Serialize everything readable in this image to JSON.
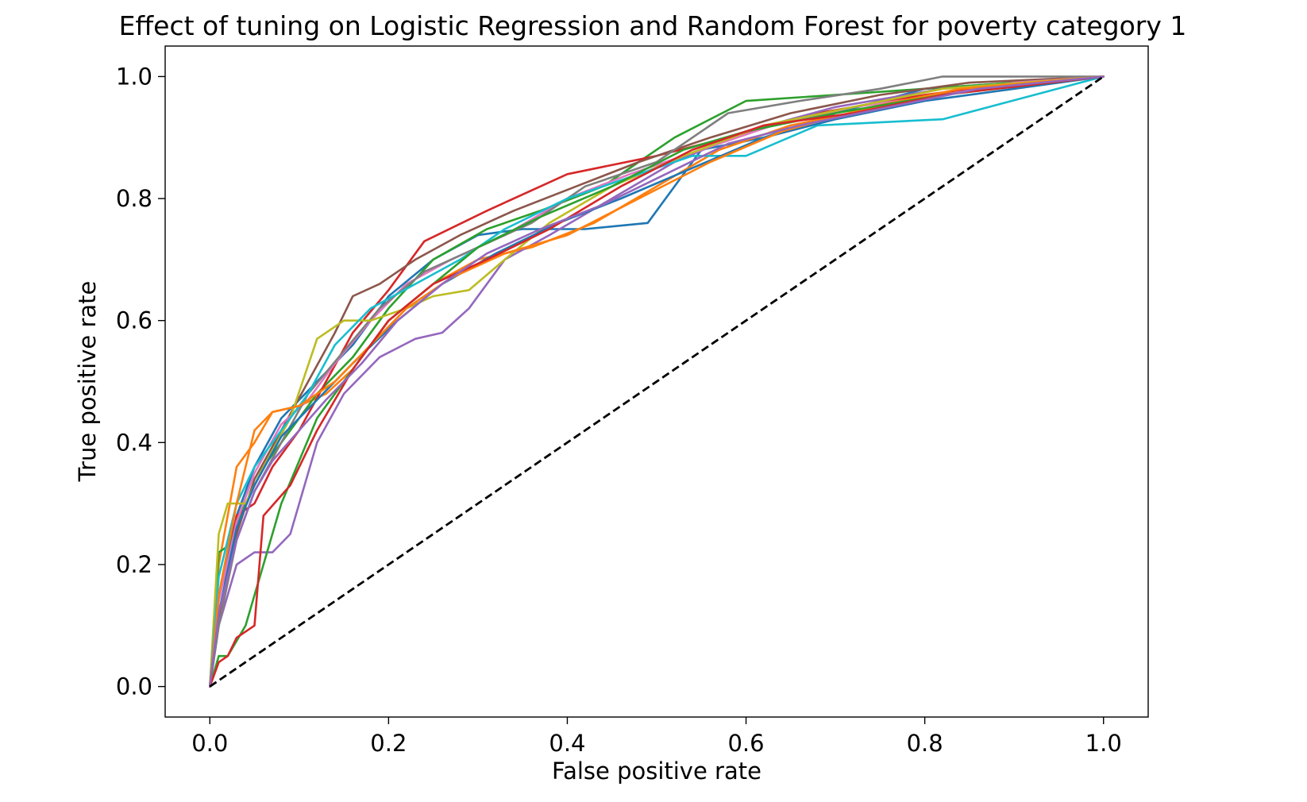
{
  "chart_data": {
    "type": "line",
    "title": "Effect of tuning on Logistic Regression and Random Forest for poverty category 1",
    "xlabel": "False positive rate",
    "ylabel": "True positive rate",
    "xlim": [
      -0.05,
      1.05
    ],
    "ylim": [
      -0.05,
      1.05
    ],
    "xticks": [
      "0.0",
      "0.2",
      "0.4",
      "0.6",
      "0.8",
      "1.0"
    ],
    "yticks": [
      "0.0",
      "0.2",
      "0.4",
      "0.6",
      "0.8",
      "1.0"
    ],
    "grid": false,
    "legend": "none",
    "chance_line": {
      "x": [
        0,
        1
      ],
      "y": [
        0,
        1
      ],
      "color": "#000000",
      "style": "dashed"
    },
    "series": [
      {
        "color": "#1f77b4",
        "x": [
          0,
          0.01,
          0.03,
          0.05,
          0.08,
          0.12,
          0.16,
          0.2,
          0.25,
          0.3,
          0.35,
          0.42,
          0.49,
          0.55,
          0.62,
          0.7,
          0.8,
          0.9,
          1.0
        ],
        "y": [
          0,
          0.15,
          0.28,
          0.36,
          0.44,
          0.5,
          0.56,
          0.64,
          0.7,
          0.74,
          0.75,
          0.75,
          0.76,
          0.88,
          0.9,
          0.94,
          0.98,
          0.99,
          1.0
        ]
      },
      {
        "color": "#ff7f0e",
        "x": [
          0,
          0.01,
          0.03,
          0.05,
          0.07,
          0.1,
          0.13,
          0.16,
          0.2,
          0.25,
          0.3,
          0.36,
          0.43,
          0.5,
          0.57,
          0.65,
          0.75,
          0.85,
          1.0
        ],
        "y": [
          0,
          0.2,
          0.36,
          0.4,
          0.45,
          0.46,
          0.48,
          0.52,
          0.6,
          0.66,
          0.7,
          0.72,
          0.76,
          0.82,
          0.88,
          0.92,
          0.95,
          0.98,
          1.0
        ]
      },
      {
        "color": "#2ca02c",
        "x": [
          0,
          0.01,
          0.02,
          0.04,
          0.06,
          0.09,
          0.12,
          0.16,
          0.2,
          0.25,
          0.31,
          0.37,
          0.44,
          0.52,
          0.6,
          0.7,
          0.8,
          0.9,
          1.0
        ],
        "y": [
          0,
          0.22,
          0.23,
          0.3,
          0.36,
          0.42,
          0.48,
          0.54,
          0.62,
          0.7,
          0.75,
          0.78,
          0.82,
          0.9,
          0.96,
          0.97,
          0.98,
          0.99,
          1.0
        ]
      },
      {
        "color": "#d62728",
        "x": [
          0,
          0.01,
          0.02,
          0.03,
          0.05,
          0.07,
          0.1,
          0.13,
          0.16,
          0.2,
          0.24,
          0.31,
          0.4,
          0.5,
          0.58,
          0.68,
          0.8,
          0.9,
          1.0
        ],
        "y": [
          0,
          0.1,
          0.2,
          0.28,
          0.3,
          0.36,
          0.42,
          0.5,
          0.58,
          0.65,
          0.73,
          0.78,
          0.84,
          0.87,
          0.9,
          0.94,
          0.97,
          0.99,
          1.0
        ]
      },
      {
        "color": "#9467bd",
        "x": [
          0,
          0.01,
          0.03,
          0.05,
          0.07,
          0.09,
          0.12,
          0.15,
          0.19,
          0.23,
          0.26,
          0.29,
          0.33,
          0.38,
          0.45,
          0.52,
          0.6,
          0.7,
          0.82,
          1.0
        ],
        "y": [
          0,
          0.1,
          0.2,
          0.22,
          0.22,
          0.25,
          0.4,
          0.48,
          0.54,
          0.57,
          0.58,
          0.62,
          0.7,
          0.74,
          0.8,
          0.86,
          0.91,
          0.95,
          0.98,
          1.0
        ]
      },
      {
        "color": "#8c564b",
        "x": [
          0,
          0.01,
          0.03,
          0.05,
          0.08,
          0.11,
          0.14,
          0.16,
          0.19,
          0.23,
          0.28,
          0.34,
          0.41,
          0.48,
          0.56,
          0.65,
          0.75,
          0.85,
          1.0
        ],
        "y": [
          0,
          0.12,
          0.25,
          0.34,
          0.42,
          0.5,
          0.58,
          0.64,
          0.66,
          0.7,
          0.74,
          0.78,
          0.82,
          0.86,
          0.9,
          0.94,
          0.97,
          0.99,
          1.0
        ]
      },
      {
        "color": "#e377c2",
        "x": [
          0,
          0.01,
          0.03,
          0.05,
          0.08,
          0.11,
          0.14,
          0.18,
          0.22,
          0.27,
          0.33,
          0.4,
          0.47,
          0.55,
          0.63,
          0.72,
          0.82,
          0.9,
          1.0
        ],
        "y": [
          0,
          0.14,
          0.27,
          0.35,
          0.43,
          0.47,
          0.53,
          0.6,
          0.66,
          0.7,
          0.74,
          0.8,
          0.84,
          0.88,
          0.92,
          0.95,
          0.97,
          0.99,
          1.0
        ]
      },
      {
        "color": "#7f7f7f",
        "x": [
          0,
          0.01,
          0.03,
          0.05,
          0.08,
          0.11,
          0.15,
          0.19,
          0.24,
          0.3,
          0.36,
          0.42,
          0.5,
          0.58,
          0.66,
          0.75,
          0.82,
          0.9,
          1.0
        ],
        "y": [
          0,
          0.1,
          0.24,
          0.32,
          0.4,
          0.48,
          0.55,
          0.62,
          0.68,
          0.72,
          0.76,
          0.82,
          0.86,
          0.94,
          0.96,
          0.98,
          1.0,
          1.0,
          1.0
        ]
      },
      {
        "color": "#bcbd22",
        "x": [
          0,
          0.01,
          0.02,
          0.04,
          0.06,
          0.09,
          0.12,
          0.15,
          0.18,
          0.22,
          0.25,
          0.29,
          0.33,
          0.38,
          0.45,
          0.53,
          0.62,
          0.72,
          0.82,
          1.0
        ],
        "y": [
          0,
          0.25,
          0.3,
          0.3,
          0.36,
          0.44,
          0.57,
          0.6,
          0.6,
          0.62,
          0.64,
          0.65,
          0.7,
          0.76,
          0.82,
          0.87,
          0.92,
          0.95,
          0.98,
          1.0
        ]
      },
      {
        "color": "#17becf",
        "x": [
          0,
          0.01,
          0.03,
          0.05,
          0.08,
          0.11,
          0.14,
          0.18,
          0.23,
          0.28,
          0.33,
          0.4,
          0.48,
          0.54,
          0.6,
          0.68,
          0.82,
          1.0
        ],
        "y": [
          0,
          0.18,
          0.3,
          0.36,
          0.42,
          0.48,
          0.56,
          0.62,
          0.66,
          0.7,
          0.75,
          0.8,
          0.84,
          0.87,
          0.87,
          0.92,
          0.93,
          1.0
        ]
      },
      {
        "color": "#1f77b4",
        "x": [
          0,
          0.01,
          0.03,
          0.05,
          0.08,
          0.12,
          0.16,
          0.21,
          0.26,
          0.32,
          0.39,
          0.46,
          0.54,
          0.62,
          0.7,
          0.8,
          0.9,
          1.0
        ],
        "y": [
          0,
          0.12,
          0.26,
          0.33,
          0.41,
          0.47,
          0.53,
          0.6,
          0.66,
          0.71,
          0.76,
          0.8,
          0.85,
          0.9,
          0.93,
          0.96,
          0.98,
          1.0
        ]
      },
      {
        "color": "#ff7f0e",
        "x": [
          0,
          0.01,
          0.03,
          0.05,
          0.07,
          0.1,
          0.14,
          0.18,
          0.22,
          0.27,
          0.33,
          0.4,
          0.48,
          0.56,
          0.64,
          0.74,
          0.84,
          1.0
        ],
        "y": [
          0,
          0.15,
          0.3,
          0.42,
          0.45,
          0.46,
          0.5,
          0.56,
          0.62,
          0.67,
          0.71,
          0.74,
          0.8,
          0.86,
          0.91,
          0.95,
          0.98,
          1.0
        ]
      },
      {
        "color": "#2ca02c",
        "x": [
          0,
          0.01,
          0.02,
          0.04,
          0.06,
          0.08,
          0.12,
          0.16,
          0.2,
          0.25,
          0.3,
          0.37,
          0.45,
          0.53,
          0.6,
          0.7,
          0.82,
          1.0
        ],
        "y": [
          0,
          0.05,
          0.05,
          0.1,
          0.2,
          0.3,
          0.44,
          0.52,
          0.6,
          0.66,
          0.72,
          0.77,
          0.82,
          0.88,
          0.91,
          0.94,
          0.97,
          1.0
        ]
      },
      {
        "color": "#d62728",
        "x": [
          0,
          0.01,
          0.02,
          0.03,
          0.05,
          0.06,
          0.09,
          0.12,
          0.16,
          0.2,
          0.25,
          0.31,
          0.38,
          0.46,
          0.54,
          0.62,
          0.72,
          0.82,
          1.0
        ],
        "y": [
          0,
          0.04,
          0.05,
          0.08,
          0.1,
          0.28,
          0.33,
          0.42,
          0.52,
          0.6,
          0.66,
          0.7,
          0.75,
          0.82,
          0.88,
          0.92,
          0.94,
          0.97,
          1.0
        ]
      },
      {
        "color": "#9467bd",
        "x": [
          0,
          0.01,
          0.03,
          0.05,
          0.07,
          0.1,
          0.13,
          0.17,
          0.21,
          0.26,
          0.31,
          0.37,
          0.44,
          0.51,
          0.58,
          0.66,
          0.76,
          0.86,
          1.0
        ],
        "y": [
          0,
          0.12,
          0.24,
          0.32,
          0.37,
          0.42,
          0.47,
          0.53,
          0.6,
          0.66,
          0.71,
          0.75,
          0.79,
          0.84,
          0.89,
          0.92,
          0.95,
          0.98,
          1.0
        ]
      }
    ]
  }
}
